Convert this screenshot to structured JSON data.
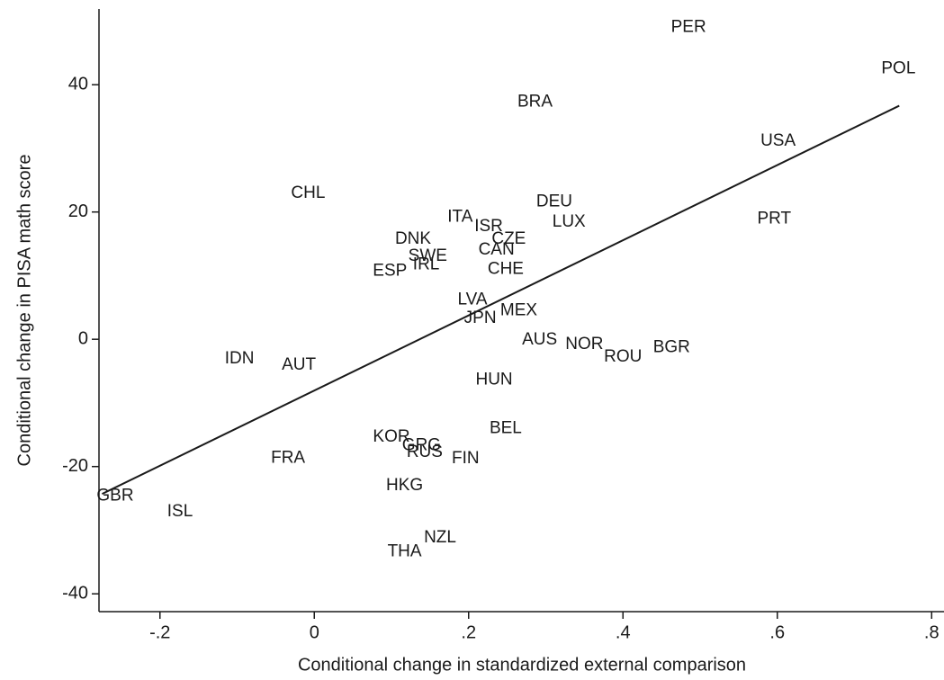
{
  "chart_data": {
    "type": "scatter",
    "x_label": "Conditional change in standardized external comparison",
    "y_label": "Conditional change in PISA math score",
    "xlim": [
      -0.279,
      0.816
    ],
    "ylim": [
      -42.8,
      51.9
    ],
    "xticks": [
      {
        "value": -0.2,
        "label": "-.2"
      },
      0,
      {
        "value": 0.2,
        "label": ".2"
      },
      {
        "value": 0.4,
        "label": ".4"
      },
      {
        "value": 0.6,
        "label": ".6"
      },
      {
        "value": 0.8,
        "label": ".8"
      }
    ],
    "yticks": [
      40,
      20,
      0,
      -20,
      -40
    ],
    "color": "#1a1a1a",
    "series": [
      {
        "labels": [
          "PER",
          "POL",
          "BRA",
          "USA",
          "CHL",
          "DEU",
          "ITA",
          "LUX",
          "PRT",
          "ISR",
          "DNK",
          "CZE",
          "CAN",
          "SWE",
          "IRL",
          "ESP",
          "CHE",
          "LVA",
          "MEX",
          "JPN",
          "AUS",
          "NOR",
          "BGR",
          "ROU",
          "IDN",
          "AUT",
          "HUN",
          "BEL",
          "KOR",
          "GRG",
          "RUS",
          "FIN",
          "FRA",
          "HKG",
          "GBR",
          "ISL",
          "NZL",
          "THA"
        ],
        "x": [
          0.485,
          0.757,
          0.286,
          0.601,
          -0.008,
          0.311,
          0.189,
          0.33,
          0.596,
          0.226,
          0.128,
          0.252,
          0.236,
          0.147,
          0.145,
          0.098,
          0.248,
          0.205,
          0.265,
          0.215,
          0.292,
          0.35,
          0.463,
          0.4,
          -0.097,
          -0.02,
          0.233,
          0.248,
          0.1,
          0.139,
          0.143,
          0.196,
          -0.034,
          0.117,
          -0.258,
          -0.174,
          0.163,
          0.117
        ],
        "y": [
          49.0,
          42.5,
          37.3,
          31.1,
          22.9,
          21.6,
          19.2,
          18.4,
          18.9,
          17.7,
          15.7,
          15.7,
          14.0,
          13.0,
          11.7,
          10.7,
          11.0,
          6.2,
          4.5,
          3.3,
          -0.1,
          -0.8,
          -1.3,
          -2.8,
          -3.1,
          -4.1,
          -6.4,
          -14.0,
          -15.4,
          -16.7,
          -17.8,
          -18.8,
          -18.7,
          -23.0,
          -24.6,
          -27.1,
          -31.2,
          -33.4
        ]
      }
    ],
    "fit": {
      "x": [
        -0.275,
        0.758
      ],
      "y": [
        -24.3,
        36.7
      ]
    }
  }
}
